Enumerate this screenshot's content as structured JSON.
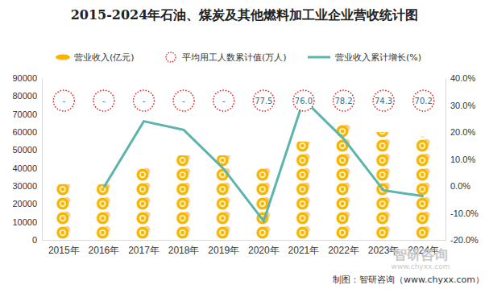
{
  "chart_data": {
    "type": "bar",
    "title": "2015-2024年石油、煤炭及其他燃料加工业企业营收统计图",
    "categories": [
      "2015年",
      "2016年",
      "2017年",
      "2018年",
      "2019年",
      "2020年",
      "2021年",
      "2022年",
      "2023年",
      "2024年"
    ],
    "series": [
      {
        "name": "营业收入(亿元)",
        "type": "bar",
        "color": "#f7b500",
        "values": [
          31000,
          31000,
          40800,
          47000,
          47000,
          40800,
          54700,
          65000,
          60000,
          57400
        ]
      },
      {
        "name": "平均用工人数累计值(万人)",
        "type": "scatter",
        "marker": "circle",
        "color": "#e02020",
        "values": [
          null,
          null,
          null,
          null,
          null,
          77.5,
          76.0,
          78.2,
          74.3,
          70.2
        ],
        "value_labels": [
          "-",
          "-",
          "-",
          "-",
          "-",
          "77.5",
          "76.0",
          "78.2",
          "74.3",
          "70.2"
        ]
      },
      {
        "name": "营业收入累计增长(%)",
        "type": "line",
        "axis": "y2",
        "color": "#5bb5ad",
        "values": [
          null,
          -0.5,
          24.0,
          20.8,
          6.3,
          -13.0,
          32.0,
          17.5,
          -1.6,
          -3.8
        ]
      }
    ],
    "ylim": [
      0,
      90000
    ],
    "yticks": [
      0,
      10000,
      20000,
      30000,
      40000,
      50000,
      60000,
      70000,
      80000,
      90000
    ],
    "y2lim": [
      -20,
      40
    ],
    "y2ticks": [
      {
        "value": -20,
        "label": "-20.0%"
      },
      {
        "value": -10,
        "label": "-10.0%"
      },
      {
        "value": 0,
        "label": "0.0%"
      },
      {
        "value": 10,
        "label": "10.0%"
      },
      {
        "value": 20,
        "label": "20.0%"
      },
      {
        "value": 30,
        "label": "30.0%"
      },
      {
        "value": 40,
        "label": "40.0%"
      }
    ],
    "grid": false,
    "legend": "top",
    "annotations": [
      "制图：智研咨询（www.chyxx.com）",
      "智研咨询",
      "www.chyxx.com"
    ]
  }
}
